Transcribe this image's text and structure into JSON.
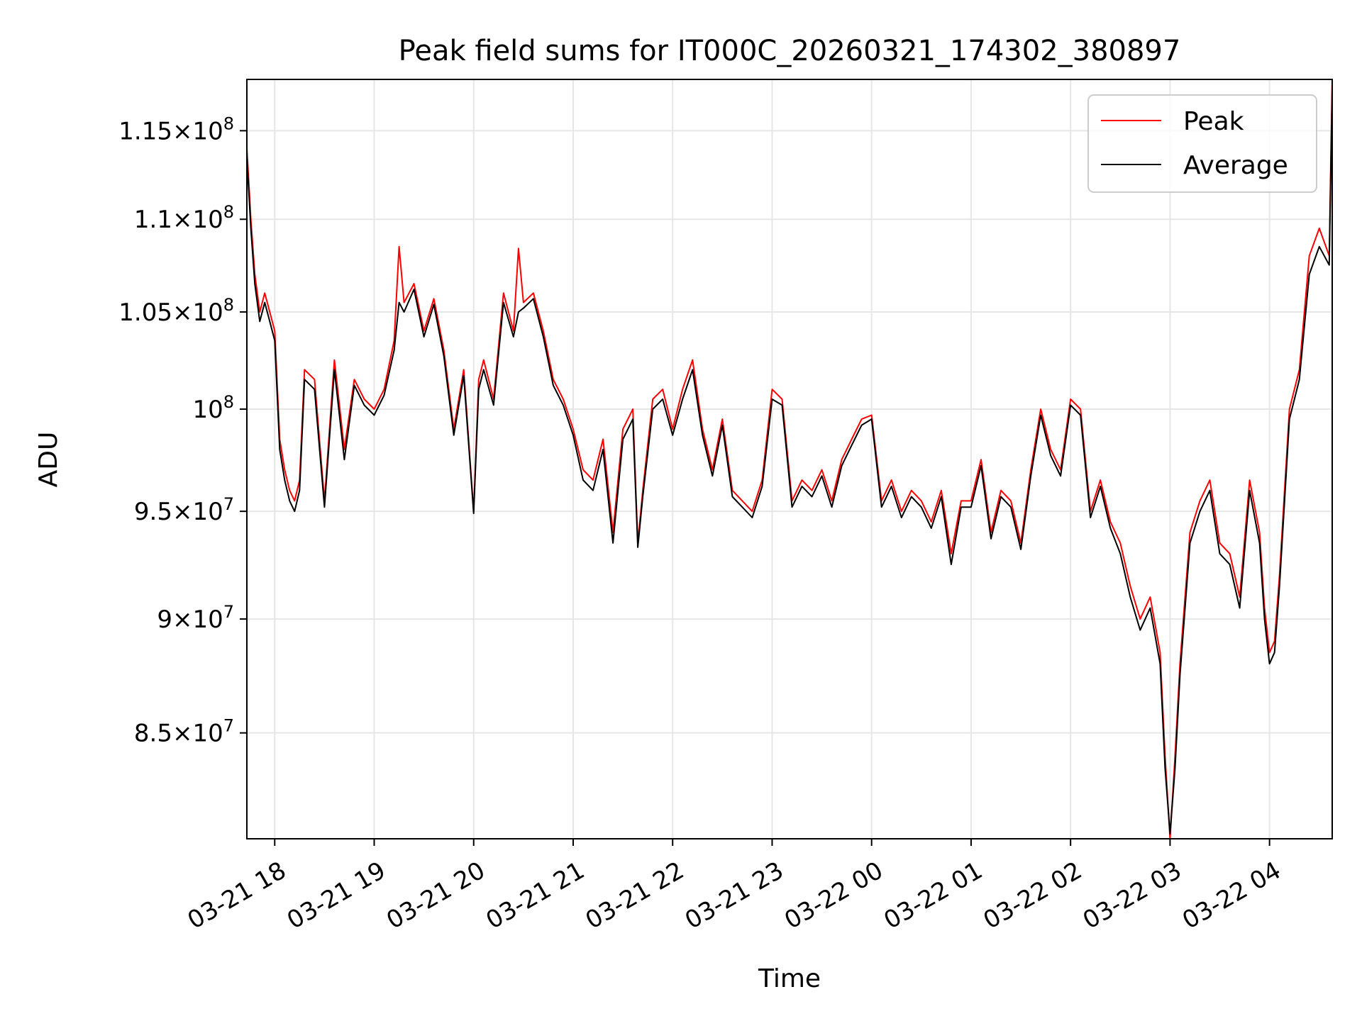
{
  "chart_data": {
    "type": "line",
    "title": "Peak field sums for IT000C_20260321_174302_380897",
    "xlabel": "Time",
    "ylabel": "ADU",
    "yscale": "log",
    "ylim": [
      80600000,
      118000000
    ],
    "xlim_hours": [
      -0.28,
      10.63
    ],
    "grid": true,
    "legend_position": "top-right",
    "x_ticks": [
      {
        "label": "03-21 18",
        "hour": 0
      },
      {
        "label": "03-21 19",
        "hour": 1
      },
      {
        "label": "03-21 20",
        "hour": 2
      },
      {
        "label": "03-21 21",
        "hour": 3
      },
      {
        "label": "03-21 22",
        "hour": 4
      },
      {
        "label": "03-21 23",
        "hour": 5
      },
      {
        "label": "03-22 00",
        "hour": 6
      },
      {
        "label": "03-22 01",
        "hour": 7
      },
      {
        "label": "03-22 02",
        "hour": 8
      },
      {
        "label": "03-22 03",
        "hour": 9
      },
      {
        "label": "03-22 04",
        "hour": 10
      }
    ],
    "y_ticks": [
      {
        "mantissa": "8.5",
        "exp": "7",
        "value": 85000000
      },
      {
        "mantissa": "9",
        "exp": "7",
        "value": 90000000
      },
      {
        "mantissa": "9.5",
        "exp": "7",
        "value": 95000000
      },
      {
        "mantissa": "",
        "exp": "8",
        "value": 100000000
      },
      {
        "mantissa": "1.05",
        "exp": "8",
        "value": 105000000
      },
      {
        "mantissa": "1.1",
        "exp": "8",
        "value": 110000000
      },
      {
        "mantissa": "1.15",
        "exp": "8",
        "value": 115000000
      }
    ],
    "x_hours": [
      -0.28,
      -0.26,
      -0.24,
      -0.2,
      -0.15,
      -0.1,
      -0.05,
      0.0,
      0.05,
      0.1,
      0.15,
      0.2,
      0.25,
      0.3,
      0.4,
      0.5,
      0.6,
      0.7,
      0.8,
      0.9,
      1.0,
      1.1,
      1.2,
      1.25,
      1.3,
      1.4,
      1.5,
      1.6,
      1.7,
      1.8,
      1.9,
      2.0,
      2.05,
      2.1,
      2.2,
      2.3,
      2.4,
      2.45,
      2.5,
      2.6,
      2.7,
      2.8,
      2.9,
      3.0,
      3.1,
      3.2,
      3.3,
      3.4,
      3.5,
      3.6,
      3.65,
      3.7,
      3.8,
      3.9,
      4.0,
      4.1,
      4.2,
      4.3,
      4.4,
      4.5,
      4.6,
      4.7,
      4.8,
      4.9,
      5.0,
      5.1,
      5.2,
      5.3,
      5.4,
      5.5,
      5.6,
      5.7,
      5.8,
      5.9,
      6.0,
      6.1,
      6.2,
      6.3,
      6.4,
      6.5,
      6.6,
      6.7,
      6.8,
      6.9,
      7.0,
      7.1,
      7.2,
      7.3,
      7.4,
      7.5,
      7.6,
      7.7,
      7.8,
      7.9,
      8.0,
      8.1,
      8.2,
      8.3,
      8.4,
      8.5,
      8.6,
      8.7,
      8.8,
      8.9,
      8.95,
      9.0,
      9.05,
      9.1,
      9.2,
      9.3,
      9.4,
      9.5,
      9.6,
      9.7,
      9.8,
      9.9,
      9.95,
      10.0,
      10.05,
      10.1,
      10.2,
      10.3,
      10.4,
      10.5,
      10.6,
      10.63
    ],
    "series": [
      {
        "name": "Peak",
        "color": "#ff0000",
        "values": [
          114000000,
          112000000,
          110000000,
          107000000,
          105000000,
          106000000,
          105000000,
          104000000,
          98500000,
          97000000,
          96000000,
          95500000,
          96500000,
          102000000,
          101500000,
          95500000,
          102500000,
          98000000,
          101500000,
          100500000,
          100000000,
          101000000,
          103500000,
          108500000,
          105500000,
          106500000,
          104000000,
          105700000,
          103000000,
          99000000,
          102000000,
          95000000,
          101500000,
          102500000,
          100500000,
          106000000,
          104000000,
          108400000,
          105500000,
          106000000,
          104000000,
          101500000,
          100500000,
          99000000,
          97000000,
          96500000,
          98500000,
          94000000,
          99000000,
          100000000,
          93500000,
          96000000,
          100500000,
          101000000,
          99000000,
          101000000,
          102500000,
          99000000,
          97000000,
          99500000,
          96000000,
          95500000,
          95000000,
          96500000,
          101000000,
          100500000,
          95500000,
          96500000,
          96000000,
          97000000,
          95500000,
          97500000,
          98500000,
          99500000,
          99700000,
          95500000,
          96500000,
          95000000,
          96000000,
          95500000,
          94500000,
          96000000,
          93000000,
          95500000,
          95500000,
          97500000,
          94000000,
          96000000,
          95500000,
          93500000,
          97000000,
          100000000,
          98000000,
          97000000,
          100500000,
          100000000,
          95000000,
          96500000,
          94500000,
          93500000,
          91500000,
          90000000,
          91000000,
          88500000,
          84000000,
          80600000,
          84000000,
          88000000,
          94000000,
          95500000,
          96500000,
          93500000,
          93000000,
          91000000,
          96500000,
          94000000,
          90500000,
          88500000,
          89000000,
          92000000,
          100000000,
          102000000,
          108000000,
          109500000,
          108000000,
          118000000
        ]
      },
      {
        "name": "Average",
        "color": "#000000",
        "values": [
          113500000,
          111500000,
          109500000,
          106500000,
          104500000,
          105500000,
          104500000,
          103500000,
          98000000,
          96500000,
          95500000,
          95000000,
          96000000,
          101500000,
          101000000,
          95200000,
          102000000,
          97500000,
          101200000,
          100200000,
          99700000,
          100700000,
          103000000,
          105500000,
          105000000,
          106200000,
          103700000,
          105400000,
          102700000,
          98700000,
          101700000,
          94900000,
          101000000,
          102000000,
          100200000,
          105500000,
          103700000,
          105000000,
          105200000,
          105700000,
          103700000,
          101200000,
          100200000,
          98700000,
          96500000,
          96000000,
          98000000,
          93500000,
          98500000,
          99500000,
          93300000,
          95700000,
          100000000,
          100500000,
          98700000,
          100500000,
          102000000,
          98700000,
          96700000,
          99200000,
          95700000,
          95200000,
          94700000,
          96200000,
          100500000,
          100200000,
          95200000,
          96200000,
          95700000,
          96700000,
          95200000,
          97200000,
          98200000,
          99200000,
          99500000,
          95200000,
          96200000,
          94700000,
          95700000,
          95200000,
          94200000,
          95700000,
          92500000,
          95200000,
          95200000,
          97200000,
          93700000,
          95700000,
          95200000,
          93200000,
          96700000,
          99700000,
          97700000,
          96700000,
          100200000,
          99700000,
          94700000,
          96200000,
          94200000,
          93000000,
          91000000,
          89500000,
          90500000,
          88000000,
          83500000,
          80800000,
          83500000,
          87500000,
          93500000,
          95000000,
          96000000,
          93000000,
          92500000,
          90500000,
          96000000,
          93500000,
          90000000,
          88000000,
          88500000,
          91500000,
          99500000,
          101500000,
          107000000,
          108500000,
          107500000,
          117500000
        ]
      }
    ]
  }
}
